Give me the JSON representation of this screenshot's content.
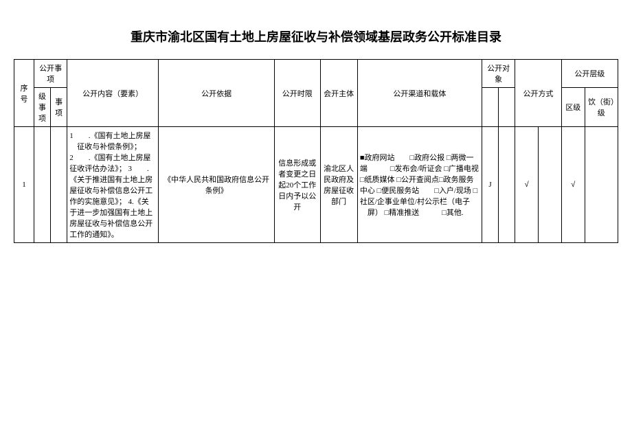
{
  "title": "重庆市渝北区国有土地上房屋征收与补偿领域基层政务公开标准目录",
  "header": {
    "seq": "序号",
    "matters": "公开事项",
    "lvl1": "级事项",
    "lvl2": "事项",
    "content": "公开内容（要素）",
    "basis": "公开依据",
    "time": "公开时限",
    "subject": "会开主体",
    "channel": "公开渠道和载体",
    "object": "公开对象",
    "way": "公开方式",
    "level": "公开层级",
    "lv_district": "区级",
    "lv_street": "饮（街）级"
  },
  "row": {
    "seq": "1",
    "content": "1　　.《国有土地上房屋\n　征收与补偿条例》；\n2　　.《国有土地上房屋征收评估办法》；\n3　　.《关于推进国有土地上房屋征收与补偿信息公开工作的实施意见》；\n4.《关于进一步加强国有土地上房屋征收与补偿信息公开工作的通知》。",
    "basis": "《中华人民共和国政府信息公开条例》",
    "time": "信息形成或者变更之日起20个工作日内予以公开",
    "subject": "渝北区人民政府及房屋征收部门",
    "channel": "■政府网站　　□政府公报\n□两微一端　　　□发布会/听证会\n□广播电视　　　□纸质媒体\n□公开查阅点□政务服务中心\n□便民服务站　　□入户/现场\n□社区/企事业单位/村公示栏（电子\n　屏）\n□精准推送　　　□其他.",
    "way1": "J",
    "mark1": "√",
    "mark2": "√"
  }
}
